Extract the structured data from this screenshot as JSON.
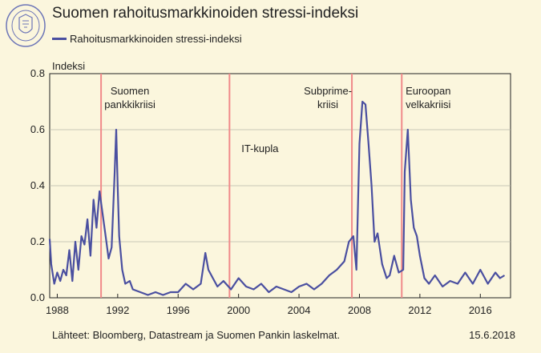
{
  "header": {
    "title": "Suomen rahoitusmarkkinoiden stressi-indeksi",
    "legend_label": "Rahoitusmarkkinoiden stressi-indeksi"
  },
  "footer": {
    "source": "Lähteet: Bloomberg, Datastream ja Suomen Pankin laskelmat.",
    "date": "15.6.2018"
  },
  "colors": {
    "series": "#4a4fa0",
    "event_line": "#f08a8a",
    "background": "#fbf6dd"
  },
  "chart_data": {
    "type": "line",
    "title": "Suomen rahoitusmarkkinoiden stressi-indeksi",
    "ylabel": "Indeksi",
    "xlabel": "",
    "xlim": [
      1987.5,
      2018.0
    ],
    "ylim": [
      0,
      0.8
    ],
    "yticks": [
      0.0,
      0.2,
      0.4,
      0.6,
      0.8
    ],
    "ytick_labels": [
      "0.0",
      "0.2",
      "0.4",
      "0.6",
      "0.8"
    ],
    "xticks": [
      1988,
      1992,
      1996,
      2000,
      2004,
      2008,
      2012,
      2016
    ],
    "xtick_labels": [
      "1988",
      "1992",
      "1996",
      "2000",
      "2004",
      "2008",
      "2012",
      "2016"
    ],
    "grid": true,
    "legend": "top-left",
    "series": [
      {
        "name": "Rahoitusmarkkinoiden stressi-indeksi",
        "x": [
          1987.5,
          1987.6,
          1987.8,
          1988.0,
          1988.2,
          1988.4,
          1988.6,
          1988.8,
          1989.0,
          1989.2,
          1989.4,
          1989.6,
          1989.8,
          1990.0,
          1990.2,
          1990.4,
          1990.6,
          1990.8,
          1991.0,
          1991.2,
          1991.4,
          1991.6,
          1991.8,
          1991.9,
          1992.0,
          1992.1,
          1992.3,
          1992.5,
          1992.8,
          1993.0,
          1993.5,
          1994.0,
          1994.5,
          1995.0,
          1995.5,
          1996.0,
          1996.5,
          1997.0,
          1997.5,
          1997.8,
          1998.0,
          1998.3,
          1998.6,
          1999.0,
          1999.5,
          2000.0,
          2000.5,
          2001.0,
          2001.5,
          2002.0,
          2002.5,
          2003.0,
          2003.5,
          2004.0,
          2004.5,
          2005.0,
          2005.5,
          2006.0,
          2006.5,
          2007.0,
          2007.3,
          2007.6,
          2007.8,
          2008.0,
          2008.2,
          2008.4,
          2008.6,
          2008.8,
          2009.0,
          2009.2,
          2009.5,
          2009.8,
          2010.0,
          2010.3,
          2010.6,
          2010.9,
          2011.0,
          2011.2,
          2011.4,
          2011.6,
          2011.8,
          2012.0,
          2012.3,
          2012.6,
          2013.0,
          2013.5,
          2014.0,
          2014.5,
          2015.0,
          2015.5,
          2016.0,
          2016.5,
          2017.0,
          2017.3,
          2017.6
        ],
        "values": [
          0.21,
          0.12,
          0.05,
          0.09,
          0.06,
          0.1,
          0.08,
          0.17,
          0.06,
          0.2,
          0.1,
          0.22,
          0.19,
          0.28,
          0.15,
          0.35,
          0.25,
          0.38,
          0.3,
          0.22,
          0.14,
          0.18,
          0.45,
          0.6,
          0.4,
          0.22,
          0.1,
          0.05,
          0.06,
          0.03,
          0.02,
          0.01,
          0.02,
          0.01,
          0.02,
          0.02,
          0.05,
          0.03,
          0.05,
          0.16,
          0.1,
          0.07,
          0.04,
          0.06,
          0.03,
          0.07,
          0.04,
          0.03,
          0.05,
          0.02,
          0.04,
          0.03,
          0.02,
          0.04,
          0.05,
          0.03,
          0.05,
          0.08,
          0.1,
          0.13,
          0.2,
          0.22,
          0.1,
          0.55,
          0.7,
          0.69,
          0.55,
          0.4,
          0.2,
          0.23,
          0.12,
          0.07,
          0.08,
          0.15,
          0.09,
          0.1,
          0.45,
          0.6,
          0.35,
          0.25,
          0.22,
          0.15,
          0.07,
          0.05,
          0.08,
          0.04,
          0.06,
          0.05,
          0.09,
          0.05,
          0.1,
          0.05,
          0.09,
          0.07,
          0.08
        ]
      }
    ],
    "event_lines": [
      {
        "x": 1990.9,
        "label_lines": [
          "Suomen",
          "pankkikriisi"
        ]
      },
      {
        "x": 1999.4,
        "label_lines": [
          "IT-kupla"
        ]
      },
      {
        "x": 2007.5,
        "label_lines": [
          "Subprime-",
          "kriisi"
        ]
      },
      {
        "x": 2010.8,
        "label_lines": [
          "Euroopan",
          "velkakriisi"
        ]
      }
    ]
  }
}
